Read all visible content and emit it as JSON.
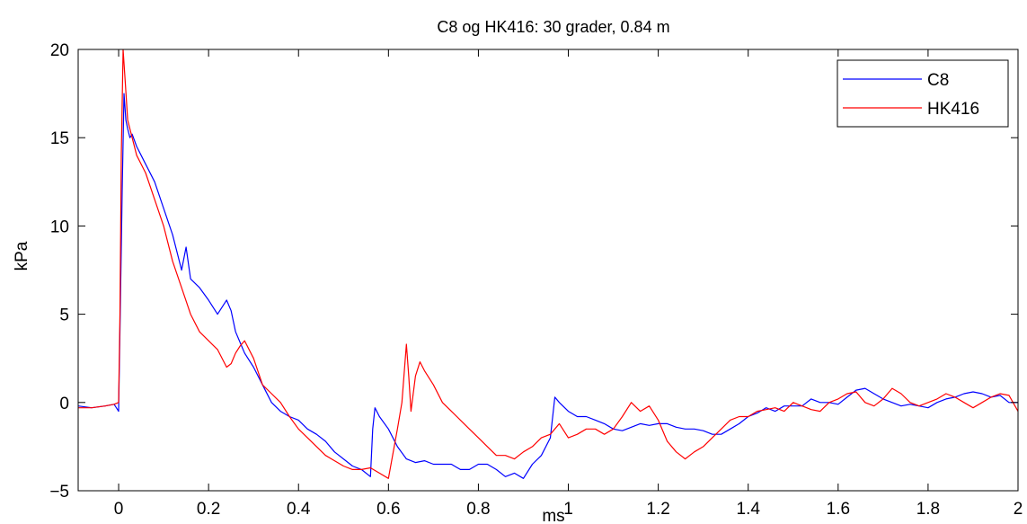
{
  "chart_data": {
    "type": "line",
    "title": "C8 og HK416: 30 grader, 0.84 m",
    "xlabel": "ms",
    "ylabel": "kPa",
    "xlim": [
      -0.09,
      2.0
    ],
    "ylim": [
      -5,
      20
    ],
    "xticks": [
      0,
      0.2,
      0.4,
      0.6,
      0.8,
      1,
      1.2,
      1.4,
      1.6,
      1.8,
      2
    ],
    "xtick_labels": [
      "0",
      "0.2",
      "0.4",
      "0.6",
      "0.8",
      "1",
      "1.2",
      "1.4",
      "1.6",
      "1.8",
      "2"
    ],
    "yticks": [
      -5,
      0,
      5,
      10,
      15,
      20
    ],
    "ytick_labels": [
      "−5",
      "0",
      "5",
      "10",
      "15",
      "20"
    ],
    "grid": false,
    "legend_position": "top-right",
    "series": [
      {
        "name": "C8",
        "color": "#0000ff",
        "x": [
          -0.09,
          -0.06,
          -0.03,
          -0.01,
          0,
          0.003,
          0.008,
          0.012,
          0.016,
          0.02,
          0.025,
          0.03,
          0.04,
          0.05,
          0.06,
          0.08,
          0.1,
          0.12,
          0.14,
          0.15,
          0.16,
          0.18,
          0.2,
          0.22,
          0.24,
          0.25,
          0.26,
          0.28,
          0.3,
          0.32,
          0.34,
          0.36,
          0.38,
          0.4,
          0.42,
          0.44,
          0.46,
          0.48,
          0.5,
          0.52,
          0.54,
          0.56,
          0.565,
          0.57,
          0.58,
          0.6,
          0.62,
          0.64,
          0.66,
          0.68,
          0.7,
          0.72,
          0.74,
          0.76,
          0.78,
          0.8,
          0.82,
          0.84,
          0.86,
          0.88,
          0.9,
          0.92,
          0.94,
          0.96,
          0.97,
          0.98,
          1.0,
          1.02,
          1.04,
          1.06,
          1.08,
          1.1,
          1.12,
          1.14,
          1.16,
          1.18,
          1.2,
          1.22,
          1.24,
          1.26,
          1.28,
          1.3,
          1.32,
          1.34,
          1.36,
          1.38,
          1.4,
          1.42,
          1.44,
          1.46,
          1.48,
          1.5,
          1.52,
          1.54,
          1.56,
          1.58,
          1.6,
          1.62,
          1.64,
          1.66,
          1.68,
          1.7,
          1.72,
          1.74,
          1.76,
          1.78,
          1.8,
          1.82,
          1.84,
          1.86,
          1.88,
          1.9,
          1.92,
          1.94,
          1.96,
          1.98,
          2.0
        ],
        "y": [
          -0.2,
          -0.3,
          -0.2,
          -0.1,
          -0.5,
          4,
          12,
          17.5,
          16,
          15.5,
          15,
          15.2,
          14.5,
          14,
          13.5,
          12.5,
          11,
          9.5,
          7.5,
          8.8,
          7,
          6.5,
          5.8,
          5,
          5.8,
          5.2,
          4,
          2.8,
          2,
          1,
          0,
          -0.5,
          -0.8,
          -1,
          -1.5,
          -1.8,
          -2.2,
          -2.8,
          -3.2,
          -3.6,
          -3.8,
          -4.2,
          -1.5,
          -0.3,
          -0.8,
          -1.5,
          -2.5,
          -3.2,
          -3.4,
          -3.3,
          -3.5,
          -3.5,
          -3.5,
          -3.8,
          -3.8,
          -3.5,
          -3.5,
          -3.8,
          -4.2,
          -4,
          -4.3,
          -3.5,
          -3,
          -2,
          0.3,
          0,
          -0.5,
          -0.8,
          -0.8,
          -1,
          -1.2,
          -1.5,
          -1.6,
          -1.4,
          -1.2,
          -1.3,
          -1.2,
          -1.2,
          -1.4,
          -1.5,
          -1.5,
          -1.6,
          -1.8,
          -1.8,
          -1.5,
          -1.2,
          -0.8,
          -0.6,
          -0.3,
          -0.5,
          -0.2,
          -0.2,
          -0.2,
          0.2,
          0,
          0,
          -0.1,
          0.3,
          0.7,
          0.8,
          0.5,
          0.2,
          0,
          -0.2,
          -0.1,
          -0.2,
          -0.3,
          0,
          0.2,
          0.3,
          0.5,
          0.6,
          0.5,
          0.3,
          0.4,
          0,
          0
        ]
      },
      {
        "name": "HK416",
        "color": "#ff0000",
        "x": [
          -0.09,
          -0.06,
          -0.03,
          -0.01,
          0,
          0.003,
          0.006,
          0.01,
          0.015,
          0.02,
          0.03,
          0.04,
          0.06,
          0.08,
          0.1,
          0.12,
          0.14,
          0.16,
          0.18,
          0.2,
          0.22,
          0.24,
          0.25,
          0.26,
          0.27,
          0.28,
          0.3,
          0.32,
          0.34,
          0.36,
          0.38,
          0.4,
          0.42,
          0.44,
          0.46,
          0.48,
          0.5,
          0.52,
          0.54,
          0.56,
          0.58,
          0.6,
          0.62,
          0.63,
          0.64,
          0.645,
          0.65,
          0.66,
          0.67,
          0.68,
          0.7,
          0.72,
          0.74,
          0.76,
          0.78,
          0.8,
          0.82,
          0.84,
          0.86,
          0.88,
          0.9,
          0.92,
          0.94,
          0.96,
          0.98,
          1.0,
          1.02,
          1.04,
          1.06,
          1.08,
          1.1,
          1.12,
          1.14,
          1.16,
          1.18,
          1.2,
          1.22,
          1.24,
          1.26,
          1.28,
          1.3,
          1.32,
          1.34,
          1.36,
          1.38,
          1.4,
          1.42,
          1.44,
          1.46,
          1.48,
          1.5,
          1.52,
          1.54,
          1.56,
          1.58,
          1.6,
          1.62,
          1.64,
          1.66,
          1.68,
          1.7,
          1.72,
          1.74,
          1.76,
          1.78,
          1.8,
          1.82,
          1.84,
          1.86,
          1.88,
          1.9,
          1.92,
          1.94,
          1.96,
          1.98,
          2.0
        ],
        "y": [
          -0.3,
          -0.3,
          -0.2,
          -0.1,
          0,
          5,
          14,
          20,
          18,
          16,
          15,
          14,
          13,
          11.5,
          10,
          8,
          6.5,
          5,
          4,
          3.5,
          3,
          2,
          2.2,
          2.8,
          3.2,
          3.5,
          2.5,
          1,
          0.5,
          0,
          -0.8,
          -1.5,
          -2,
          -2.5,
          -3,
          -3.3,
          -3.6,
          -3.8,
          -3.8,
          -3.7,
          -4,
          -4.3,
          -1.5,
          0,
          3.3,
          1.5,
          -0.5,
          1.5,
          2.3,
          1.8,
          1,
          0,
          -0.5,
          -1,
          -1.5,
          -2,
          -2.5,
          -3,
          -3,
          -3.2,
          -2.8,
          -2.5,
          -2,
          -1.8,
          -1.2,
          -2,
          -1.8,
          -1.5,
          -1.5,
          -1.8,
          -1.5,
          -0.8,
          0,
          -0.5,
          -0.2,
          -1,
          -2.2,
          -2.8,
          -3.2,
          -2.8,
          -2.5,
          -2,
          -1.5,
          -1,
          -0.8,
          -0.8,
          -0.5,
          -0.4,
          -0.3,
          -0.5,
          0,
          -0.2,
          -0.4,
          -0.5,
          0,
          0.2,
          0.5,
          0.6,
          0,
          -0.2,
          0.2,
          0.8,
          0.5,
          0,
          -0.2,
          0,
          0.2,
          0.5,
          0.3,
          0,
          -0.3,
          0,
          0.3,
          0.5,
          0.4,
          -0.5
        ]
      }
    ]
  }
}
